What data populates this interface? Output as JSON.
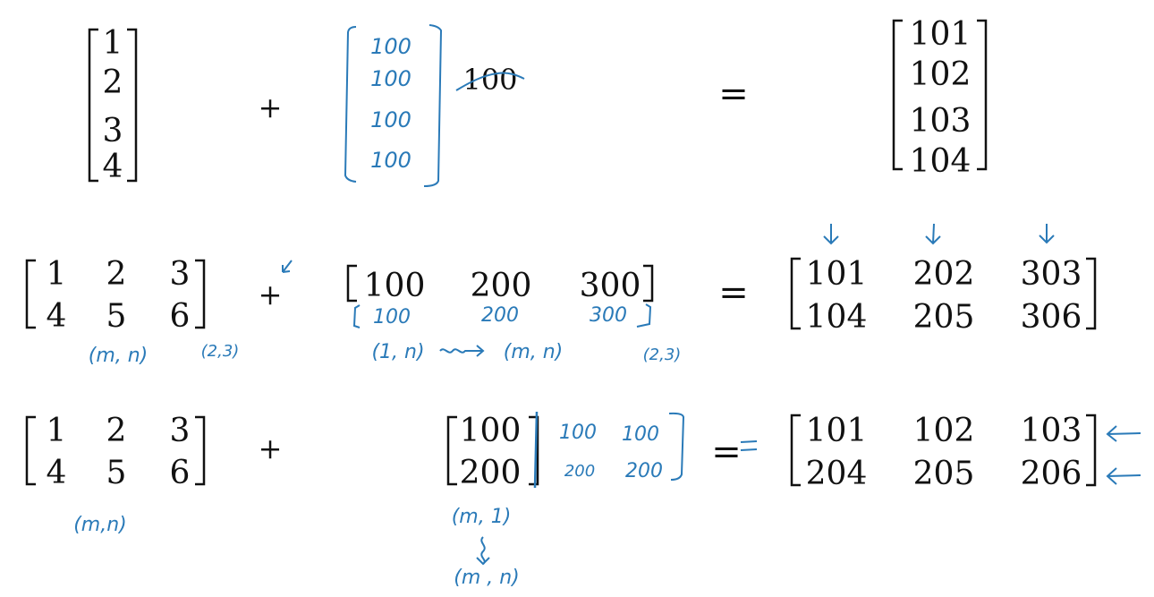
{
  "ink_color": "#2a7ab8",
  "text_color": "#111111",
  "example1": {
    "left_vector": [
      "1",
      "2",
      "3",
      "4"
    ],
    "plus": "+",
    "equals": "=",
    "scalar": "100",
    "handwritten_column": [
      "100",
      "100",
      "100",
      "100"
    ],
    "result_vector": [
      "101",
      "102",
      "103",
      "104"
    ]
  },
  "example2": {
    "left_matrix": [
      [
        "1",
        "2",
        "3"
      ],
      [
        "4",
        "5",
        "6"
      ]
    ],
    "plus": "+",
    "equals": "=",
    "row_vector": [
      "100",
      "200",
      "300"
    ],
    "handwritten_copy_row": [
      "100",
      "200",
      "300"
    ],
    "result_matrix": [
      [
        "101",
        "202",
        "303"
      ],
      [
        "104",
        "205",
        "306"
      ]
    ],
    "annotations": {
      "left_shape": "(m, n)",
      "left_dims": "(2,3)",
      "broadcast_from": "(1, n)",
      "broadcast_to": "(m, n)",
      "broadcast_dims": "(2,3)"
    }
  },
  "example3": {
    "left_matrix": [
      [
        "1",
        "2",
        "3"
      ],
      [
        "4",
        "5",
        "6"
      ]
    ],
    "plus": "+",
    "equals": "=",
    "column_vector": [
      "100",
      "200"
    ],
    "handwritten_expansion": [
      [
        "100",
        "100"
      ],
      [
        "200",
        "200"
      ]
    ],
    "result_matrix": [
      [
        "101",
        "102",
        "103"
      ],
      [
        "204",
        "205",
        "206"
      ]
    ],
    "annotations": {
      "left_shape": "(m,n)",
      "column_shape": "(m, 1)",
      "expanded_shape": "(m , n)"
    }
  }
}
